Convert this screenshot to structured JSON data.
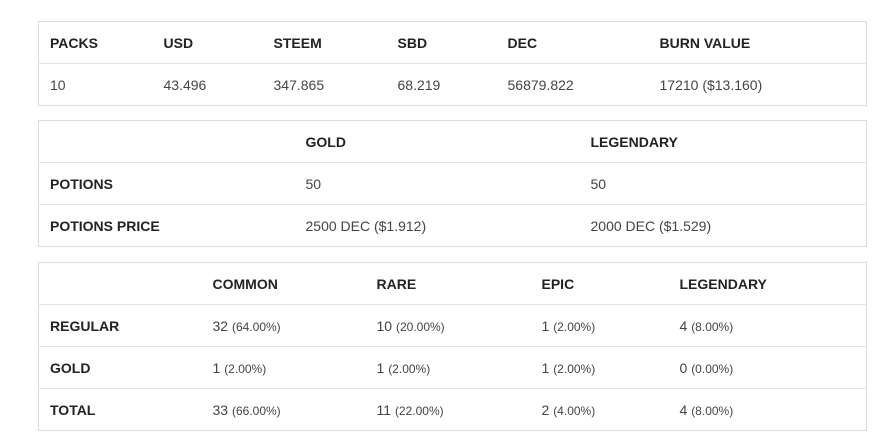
{
  "packs_table": {
    "headers": [
      "PACKS",
      "USD",
      "STEEM",
      "SBD",
      "DEC",
      "BURN VALUE"
    ],
    "row": [
      "10",
      "43.496",
      "347.865",
      "68.219",
      "56879.822",
      "17210 ($13.160)"
    ]
  },
  "potions_table": {
    "headers": [
      "",
      "GOLD",
      "LEGENDARY"
    ],
    "rows": [
      {
        "label": "POTIONS",
        "gold": "50",
        "legendary": "50"
      },
      {
        "label": "POTIONS PRICE",
        "gold": "2500 DEC ($1.912)",
        "legendary": "2000 DEC ($1.529)"
      }
    ]
  },
  "rarity_table": {
    "headers": [
      "",
      "COMMON",
      "RARE",
      "EPIC",
      "LEGENDARY"
    ],
    "rows": [
      {
        "label": "REGULAR",
        "cells": [
          {
            "v": "32",
            "p": "(64.00%)"
          },
          {
            "v": "10",
            "p": "(20.00%)"
          },
          {
            "v": "1",
            "p": "(2.00%)"
          },
          {
            "v": "4",
            "p": "(8.00%)"
          }
        ]
      },
      {
        "label": "GOLD",
        "cells": [
          {
            "v": "1",
            "p": "(2.00%)"
          },
          {
            "v": "1",
            "p": "(2.00%)"
          },
          {
            "v": "1",
            "p": "(2.00%)"
          },
          {
            "v": "0",
            "p": "(0.00%)"
          }
        ]
      },
      {
        "label": "TOTAL",
        "cells": [
          {
            "v": "33",
            "p": "(66.00%)"
          },
          {
            "v": "11",
            "p": "(22.00%)"
          },
          {
            "v": "2",
            "p": "(4.00%)"
          },
          {
            "v": "4",
            "p": "(8.00%)"
          }
        ]
      }
    ]
  }
}
